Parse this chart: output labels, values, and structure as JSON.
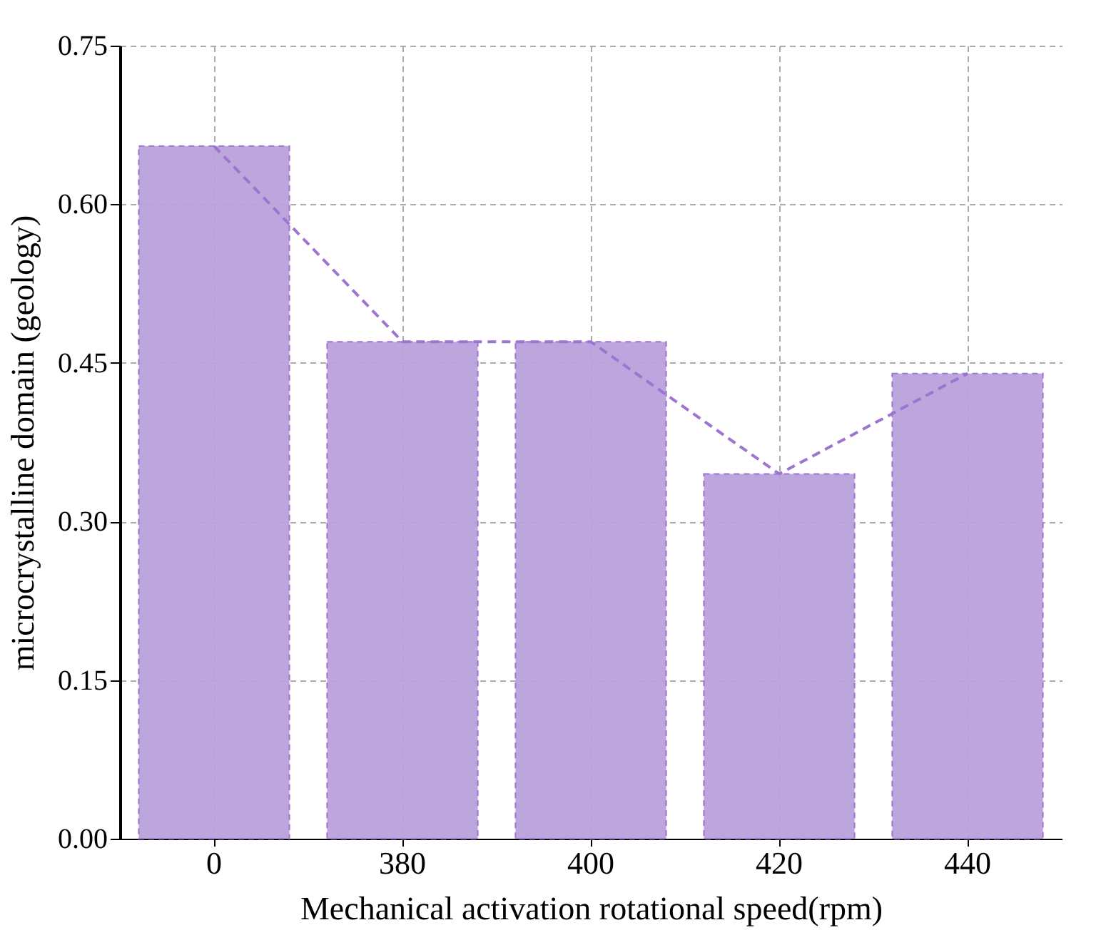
{
  "chart_data": {
    "type": "bar",
    "xlabel": "Mechanical activation rotational speed(rpm)",
    "ylabel": "microcrystalline domain (geology)",
    "categories": [
      "0",
      "380",
      "400",
      "420",
      "440"
    ],
    "series": [
      {
        "color": "#b9a0dc",
        "values": [
          0.655,
          0.47,
          0.47,
          0.345,
          0.44
        ]
      },
      {
        "type": "line",
        "color": "#9d74d0",
        "line_style": "dashed",
        "marker": "none",
        "values": [
          0.655,
          0.47,
          0.47,
          0.345,
          0.44
        ]
      }
    ],
    "ylim": [
      0,
      0.75
    ],
    "yticks": [
      {
        "value": 0,
        "label": "0.00"
      },
      {
        "value": 0.15,
        "label": "0.15"
      },
      {
        "value": 0.3,
        "label": "0.30"
      },
      {
        "value": 0.45,
        "label": "0.45"
      },
      {
        "value": 0.6,
        "label": "0.60"
      },
      {
        "value": 0.75,
        "label": "0.75"
      }
    ],
    "grid": true
  }
}
